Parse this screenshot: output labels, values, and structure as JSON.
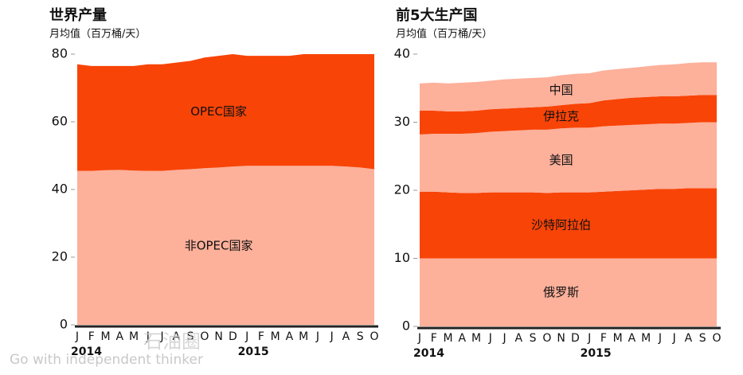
{
  "chart_data": [
    {
      "type": "stacked-area",
      "title": "世界产量",
      "subtitle": "月均值（百万桶/天）",
      "categories": [
        "J",
        "F",
        "M",
        "A",
        "M",
        "J",
        "J",
        "A",
        "S",
        "O",
        "N",
        "D",
        "J",
        "F",
        "M",
        "A",
        "M",
        "J",
        "J",
        "A",
        "S",
        "O"
      ],
      "year_labels": [
        "2014",
        "2015"
      ],
      "ylim": [
        0,
        80
      ],
      "yticks": [
        0,
        20,
        40,
        60,
        80
      ],
      "series": [
        {
          "name": "非OPEC国家",
          "color": "#fdb09a",
          "values": [
            45.5,
            45.5,
            45.7,
            45.8,
            45.6,
            45.5,
            45.5,
            45.8,
            46,
            46.3,
            46.5,
            46.8,
            47,
            47,
            47,
            47,
            47,
            47,
            47,
            46.8,
            46.5,
            46
          ]
        },
        {
          "name": "OPEC国家",
          "color": "#f84407",
          "values": [
            31.5,
            31,
            30.8,
            30.7,
            30.9,
            31.5,
            31.5,
            31.7,
            32,
            32.7,
            33,
            33.2,
            32.5,
            32.5,
            32.5,
            32.5,
            33,
            33,
            33,
            33.2,
            33.5,
            34
          ]
        }
      ]
    },
    {
      "type": "stacked-area",
      "title": "前5大生产国",
      "subtitle": "月均值（百万桶/天）",
      "categories": [
        "J",
        "F",
        "M",
        "A",
        "M",
        "J",
        "J",
        "A",
        "S",
        "O",
        "N",
        "D",
        "J",
        "F",
        "M",
        "A",
        "M",
        "J",
        "J",
        "A",
        "S",
        "O"
      ],
      "year_labels": [
        "2014",
        "2015"
      ],
      "ylim": [
        0,
        40
      ],
      "yticks": [
        0,
        10,
        20,
        30,
        40
      ],
      "series": [
        {
          "name": "俄罗斯",
          "color": "#fdb09a",
          "values": [
            10,
            10,
            10,
            10,
            10,
            10,
            10,
            10,
            10,
            10,
            10,
            10,
            10,
            10,
            10,
            10,
            10,
            10,
            10,
            10,
            10,
            10
          ]
        },
        {
          "name": "沙特阿拉伯",
          "color": "#f84407",
          "values": [
            9.8,
            9.8,
            9.7,
            9.6,
            9.6,
            9.7,
            9.7,
            9.7,
            9.7,
            9.6,
            9.7,
            9.7,
            9.7,
            9.8,
            9.9,
            10,
            10.1,
            10.2,
            10.2,
            10.3,
            10.3,
            10.3
          ]
        },
        {
          "name": "美国",
          "color": "#fdb09a",
          "values": [
            8.4,
            8.5,
            8.6,
            8.7,
            8.8,
            8.9,
            9,
            9.1,
            9.2,
            9.3,
            9.4,
            9.5,
            9.5,
            9.6,
            9.6,
            9.6,
            9.6,
            9.6,
            9.6,
            9.6,
            9.7,
            9.7
          ]
        },
        {
          "name": "伊拉克",
          "color": "#f84407",
          "values": [
            3.5,
            3.4,
            3.3,
            3.3,
            3.3,
            3.3,
            3.3,
            3.3,
            3.3,
            3.4,
            3.4,
            3.5,
            3.6,
            3.8,
            3.9,
            4,
            4,
            4,
            4,
            4,
            4,
            4
          ]
        },
        {
          "name": "中国",
          "color": "#fdb09a",
          "values": [
            4,
            4.1,
            4.1,
            4.2,
            4.2,
            4.2,
            4.3,
            4.3,
            4.3,
            4.3,
            4.4,
            4.4,
            4.4,
            4.4,
            4.4,
            4.4,
            4.5,
            4.6,
            4.7,
            4.8,
            4.8,
            4.8
          ]
        }
      ]
    }
  ],
  "watermark": {
    "brand": "石油圈",
    "slogan": "Go with independent thinker"
  }
}
